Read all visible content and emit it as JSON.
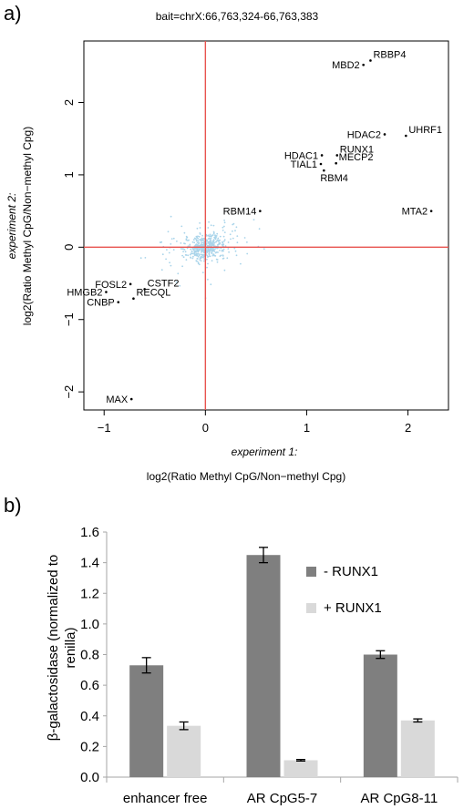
{
  "panel_a_label": "a)",
  "panel_b_label": "b)",
  "chart_data": [
    {
      "type": "scatter",
      "title": "bait=chrX:66,763,324-66,763,383",
      "xlabel_prefix": "experiment 1:",
      "xlabel": "log2(Ratio Methyl CpG/Non−methyl Cpg)",
      "ylabel_prefix": "experiment 2:",
      "ylabel": "log2(Ratio Methyl CpG/Non−methyl Cpg)",
      "xlim": [
        -1.2,
        2.4
      ],
      "ylim": [
        -2.25,
        2.85
      ],
      "xticks": [
        "−1",
        "0",
        "1",
        "2"
      ],
      "xtick_values": [
        -1,
        0,
        1,
        2
      ],
      "yticks": [
        "−2",
        "−1",
        "0",
        "1",
        "2"
      ],
      "ytick_values": [
        -2,
        -1,
        0,
        1,
        2
      ],
      "reference_lines": {
        "x": 0,
        "y": 0,
        "color": "#e8534f"
      },
      "background_color": "#a9d4ea",
      "labeled_points": [
        {
          "label": "RBBP4",
          "x": 1.63,
          "y": 2.58
        },
        {
          "label": "MBD2",
          "x": 1.56,
          "y": 2.52
        },
        {
          "label": "HDAC2",
          "x": 1.77,
          "y": 1.56
        },
        {
          "label": "UHRF1",
          "x": 1.98,
          "y": 1.54
        },
        {
          "label": "HDAC1",
          "x": 1.15,
          "y": 1.27
        },
        {
          "label": "RUNX1",
          "x": 1.3,
          "y": 1.27
        },
        {
          "label": "TIAL1",
          "x": 1.14,
          "y": 1.15
        },
        {
          "label": "MECP2",
          "x": 1.29,
          "y": 1.16
        },
        {
          "label": "RBM4",
          "x": 1.17,
          "y": 1.06
        },
        {
          "label": "MTA2",
          "x": 2.23,
          "y": 0.5
        },
        {
          "label": "RBM14",
          "x": 0.54,
          "y": 0.5
        },
        {
          "label": "FOSL2",
          "x": -0.74,
          "y": -0.51
        },
        {
          "label": "CSTF2",
          "x": -0.6,
          "y": -0.58
        },
        {
          "label": "HMGB2",
          "x": -0.98,
          "y": -0.62
        },
        {
          "label": "RECQL",
          "x": -0.71,
          "y": -0.71
        },
        {
          "label": "CNBP",
          "x": -0.86,
          "y": -0.76
        },
        {
          "label": "MAX",
          "x": -0.73,
          "y": -2.1
        }
      ]
    },
    {
      "type": "bar",
      "ylabel": "β-galactosidase (normalized to renilla)",
      "ylim": [
        0,
        1.6
      ],
      "yticks": [
        "0.0",
        "0.2",
        "0.4",
        "0.6",
        "0.8",
        "1.0",
        "1.2",
        "1.4",
        "1.6"
      ],
      "ytick_values": [
        0,
        0.2,
        0.4,
        0.6,
        0.8,
        1.0,
        1.2,
        1.4,
        1.6
      ],
      "categories": [
        "enhancer free",
        "AR CpG5-7",
        "AR CpG8-11"
      ],
      "legend_position": "top-right",
      "series": [
        {
          "name": "- RUNX1",
          "color": "#7f7f7f",
          "values": [
            0.73,
            1.45,
            0.8
          ],
          "errors": [
            0.05,
            0.05,
            0.025
          ]
        },
        {
          "name": "+ RUNX1",
          "color": "#d9d9d9",
          "values": [
            0.335,
            0.11,
            0.37
          ],
          "errors": [
            0.025,
            0.005,
            0.01
          ]
        }
      ]
    }
  ]
}
